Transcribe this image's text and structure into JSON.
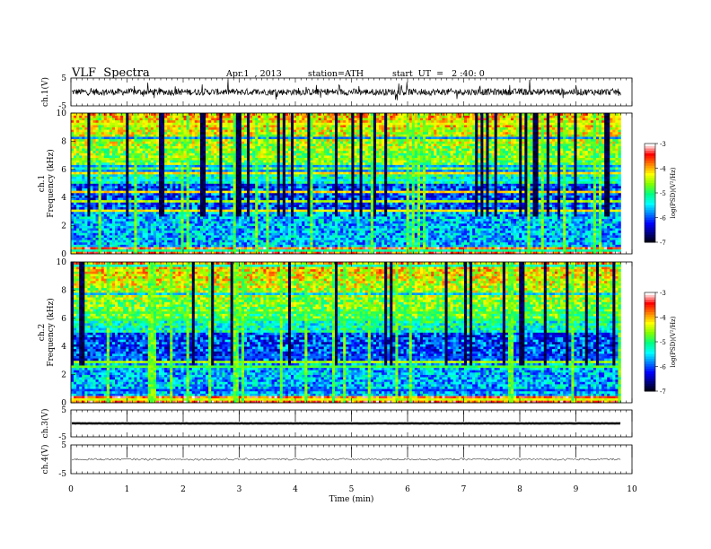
{
  "header": {
    "title": "VLF  Spectra",
    "date": "Apr.1  , 2013",
    "station": "station=ATH",
    "start": "start  UT  =   2 :40: 0"
  },
  "chart_data": [
    {
      "type": "line",
      "panel": "ch1-waveform",
      "ylabel": "ch.1(V)",
      "ylim": [
        -5,
        5
      ],
      "yticks": [
        "5",
        "-5"
      ],
      "xlim": [
        0,
        10
      ],
      "baseline": 0,
      "noise_amplitude": 1.2,
      "colors": {
        "trace": "#000000"
      }
    },
    {
      "type": "heatmap",
      "panel": "ch1-spectrogram",
      "ylabel": "ch.1\nFrequency  (kHz)",
      "ylim": [
        0,
        10
      ],
      "yticks": [
        "0",
        "2",
        "4",
        "6",
        "8",
        "10"
      ],
      "xlim": [
        0,
        10
      ],
      "data_end_min": 9.8,
      "colorbar": {
        "label": "log(PSD)(V²/Hz)",
        "range": [
          -7,
          -3
        ],
        "ticks": [
          "-3",
          "-4",
          "-5",
          "-6",
          "-7"
        ]
      }
    },
    {
      "type": "heatmap",
      "panel": "ch2-spectrogram",
      "ylabel": "ch.2\nFrequency  (kHz)",
      "ylim": [
        0,
        10
      ],
      "yticks": [
        "0",
        "2",
        "4",
        "6",
        "8",
        "10"
      ],
      "xlim": [
        0,
        10
      ],
      "data_end_min": 9.8,
      "colorbar": {
        "label": "log(PSD)(V²/Hz)",
        "range": [
          -7,
          -3
        ],
        "ticks": [
          "-3",
          "-4",
          "-5",
          "-6",
          "-7"
        ]
      }
    },
    {
      "type": "line",
      "panel": "ch3-waveform",
      "ylabel": "ch.3(V)",
      "ylim": [
        -5,
        5
      ],
      "yticks": [
        "5",
        "-5"
      ],
      "xlim": [
        0,
        10
      ],
      "baseline": 0,
      "noise_amplitude": 0.05
    },
    {
      "type": "line",
      "panel": "ch4-waveform",
      "ylabel": "ch.4(V)",
      "ylim": [
        -5,
        5
      ],
      "yticks": [
        "5",
        "-5"
      ],
      "xlim": [
        0,
        10
      ],
      "baseline": 0,
      "noise_amplitude": 0.35,
      "xlabel": "Time  (min)",
      "xticks": [
        "0",
        "1",
        "2",
        "3",
        "4",
        "5",
        "6",
        "7",
        "8",
        "9",
        "10"
      ]
    }
  ],
  "colors": {
    "colormap": [
      "#000000",
      "#000080",
      "#0000ff",
      "#0080ff",
      "#00ffff",
      "#00ff80",
      "#80ff00",
      "#ffff00",
      "#ff8000",
      "#ff0000",
      "#ffffff"
    ]
  }
}
